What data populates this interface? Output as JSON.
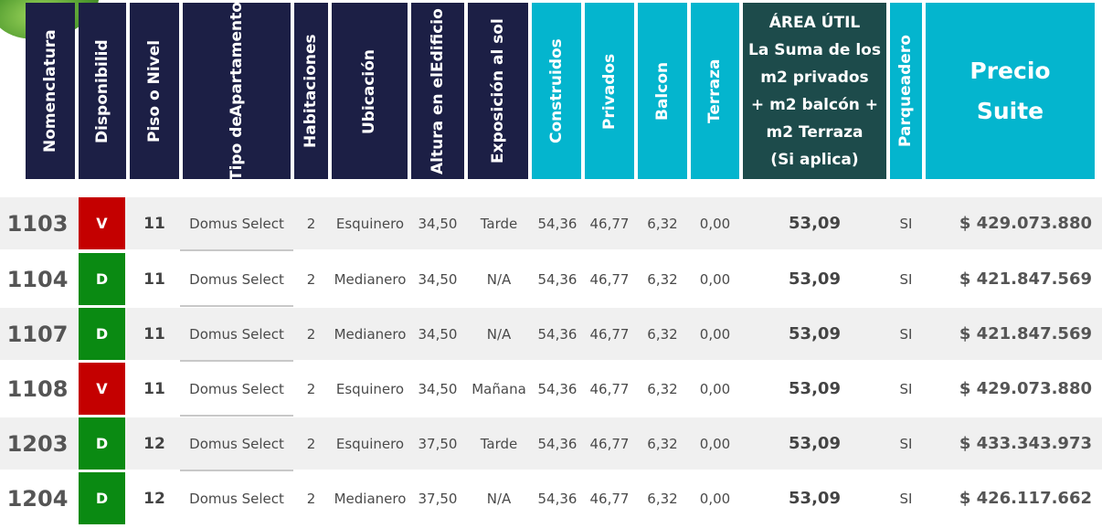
{
  "headers": {
    "nomenclatura": "Nomenclatura",
    "disponibilidad": "Disponibilid",
    "piso": "Piso o Nivel",
    "tipo_1": "Tipo de",
    "tipo_2": "Apartamento",
    "habitaciones": "Habitaciones",
    "ubicacion": "Ubicación",
    "altura_1": "Altura en el",
    "altura_2": "Edificio",
    "exposicion": "Exposición al sol",
    "construidos": "Construidos",
    "privados": "Privados",
    "balcon": "Balcon",
    "terraza": "Terraza",
    "area_1": "ÁREA ÚTIL",
    "area_2": "La Suma de los",
    "area_3": "m2 privados",
    "area_4": "+ m2 balcón +",
    "area_5": "m2 Terraza",
    "area_6": "(Si aplica)",
    "parqueadero": "Parqueadero",
    "precio_1": "Precio",
    "precio_2": "Suite"
  },
  "colors": {
    "navy": "#1c1f45",
    "cyan": "#04b5ce",
    "teal": "#1d4b4b",
    "vendido": "#c40000",
    "disponible": "#0a8a12"
  },
  "rows": [
    {
      "nom": "1103",
      "disp": "V",
      "piso": "11",
      "tipo": "Domus Select",
      "hab": "2",
      "ubic": "Esquinero",
      "altura": "34,50",
      "sol": "Tarde",
      "const": "54,36",
      "priv": "46,77",
      "balcon": "6,32",
      "terraza": "0,00",
      "area": "53,09",
      "parq": "SI",
      "precio": "$ 429.073.880"
    },
    {
      "nom": "1104",
      "disp": "D",
      "piso": "11",
      "tipo": "Domus Select",
      "hab": "2",
      "ubic": "Medianero",
      "altura": "34,50",
      "sol": "N/A",
      "const": "54,36",
      "priv": "46,77",
      "balcon": "6,32",
      "terraza": "0,00",
      "area": "53,09",
      "parq": "SI",
      "precio": "$ 421.847.569"
    },
    {
      "nom": "1107",
      "disp": "D",
      "piso": "11",
      "tipo": "Domus Select",
      "hab": "2",
      "ubic": "Medianero",
      "altura": "34,50",
      "sol": "N/A",
      "const": "54,36",
      "priv": "46,77",
      "balcon": "6,32",
      "terraza": "0,00",
      "area": "53,09",
      "parq": "SI",
      "precio": "$ 421.847.569"
    },
    {
      "nom": "1108",
      "disp": "V",
      "piso": "11",
      "tipo": "Domus Select",
      "hab": "2",
      "ubic": "Esquinero",
      "altura": "34,50",
      "sol": "Mañana",
      "const": "54,36",
      "priv": "46,77",
      "balcon": "6,32",
      "terraza": "0,00",
      "area": "53,09",
      "parq": "SI",
      "precio": "$ 429.073.880"
    },
    {
      "nom": "1203",
      "disp": "D",
      "piso": "12",
      "tipo": "Domus Select",
      "hab": "2",
      "ubic": "Esquinero",
      "altura": "37,50",
      "sol": "Tarde",
      "const": "54,36",
      "priv": "46,77",
      "balcon": "6,32",
      "terraza": "0,00",
      "area": "53,09",
      "parq": "SI",
      "precio": "$ 433.343.973"
    },
    {
      "nom": "1204",
      "disp": "D",
      "piso": "12",
      "tipo": "Domus Select",
      "hab": "2",
      "ubic": "Medianero",
      "altura": "37,50",
      "sol": "N/A",
      "const": "54,36",
      "priv": "46,77",
      "balcon": "6,32",
      "terraza": "0,00",
      "area": "53,09",
      "parq": "SI",
      "precio": "$ 426.117.662"
    }
  ]
}
